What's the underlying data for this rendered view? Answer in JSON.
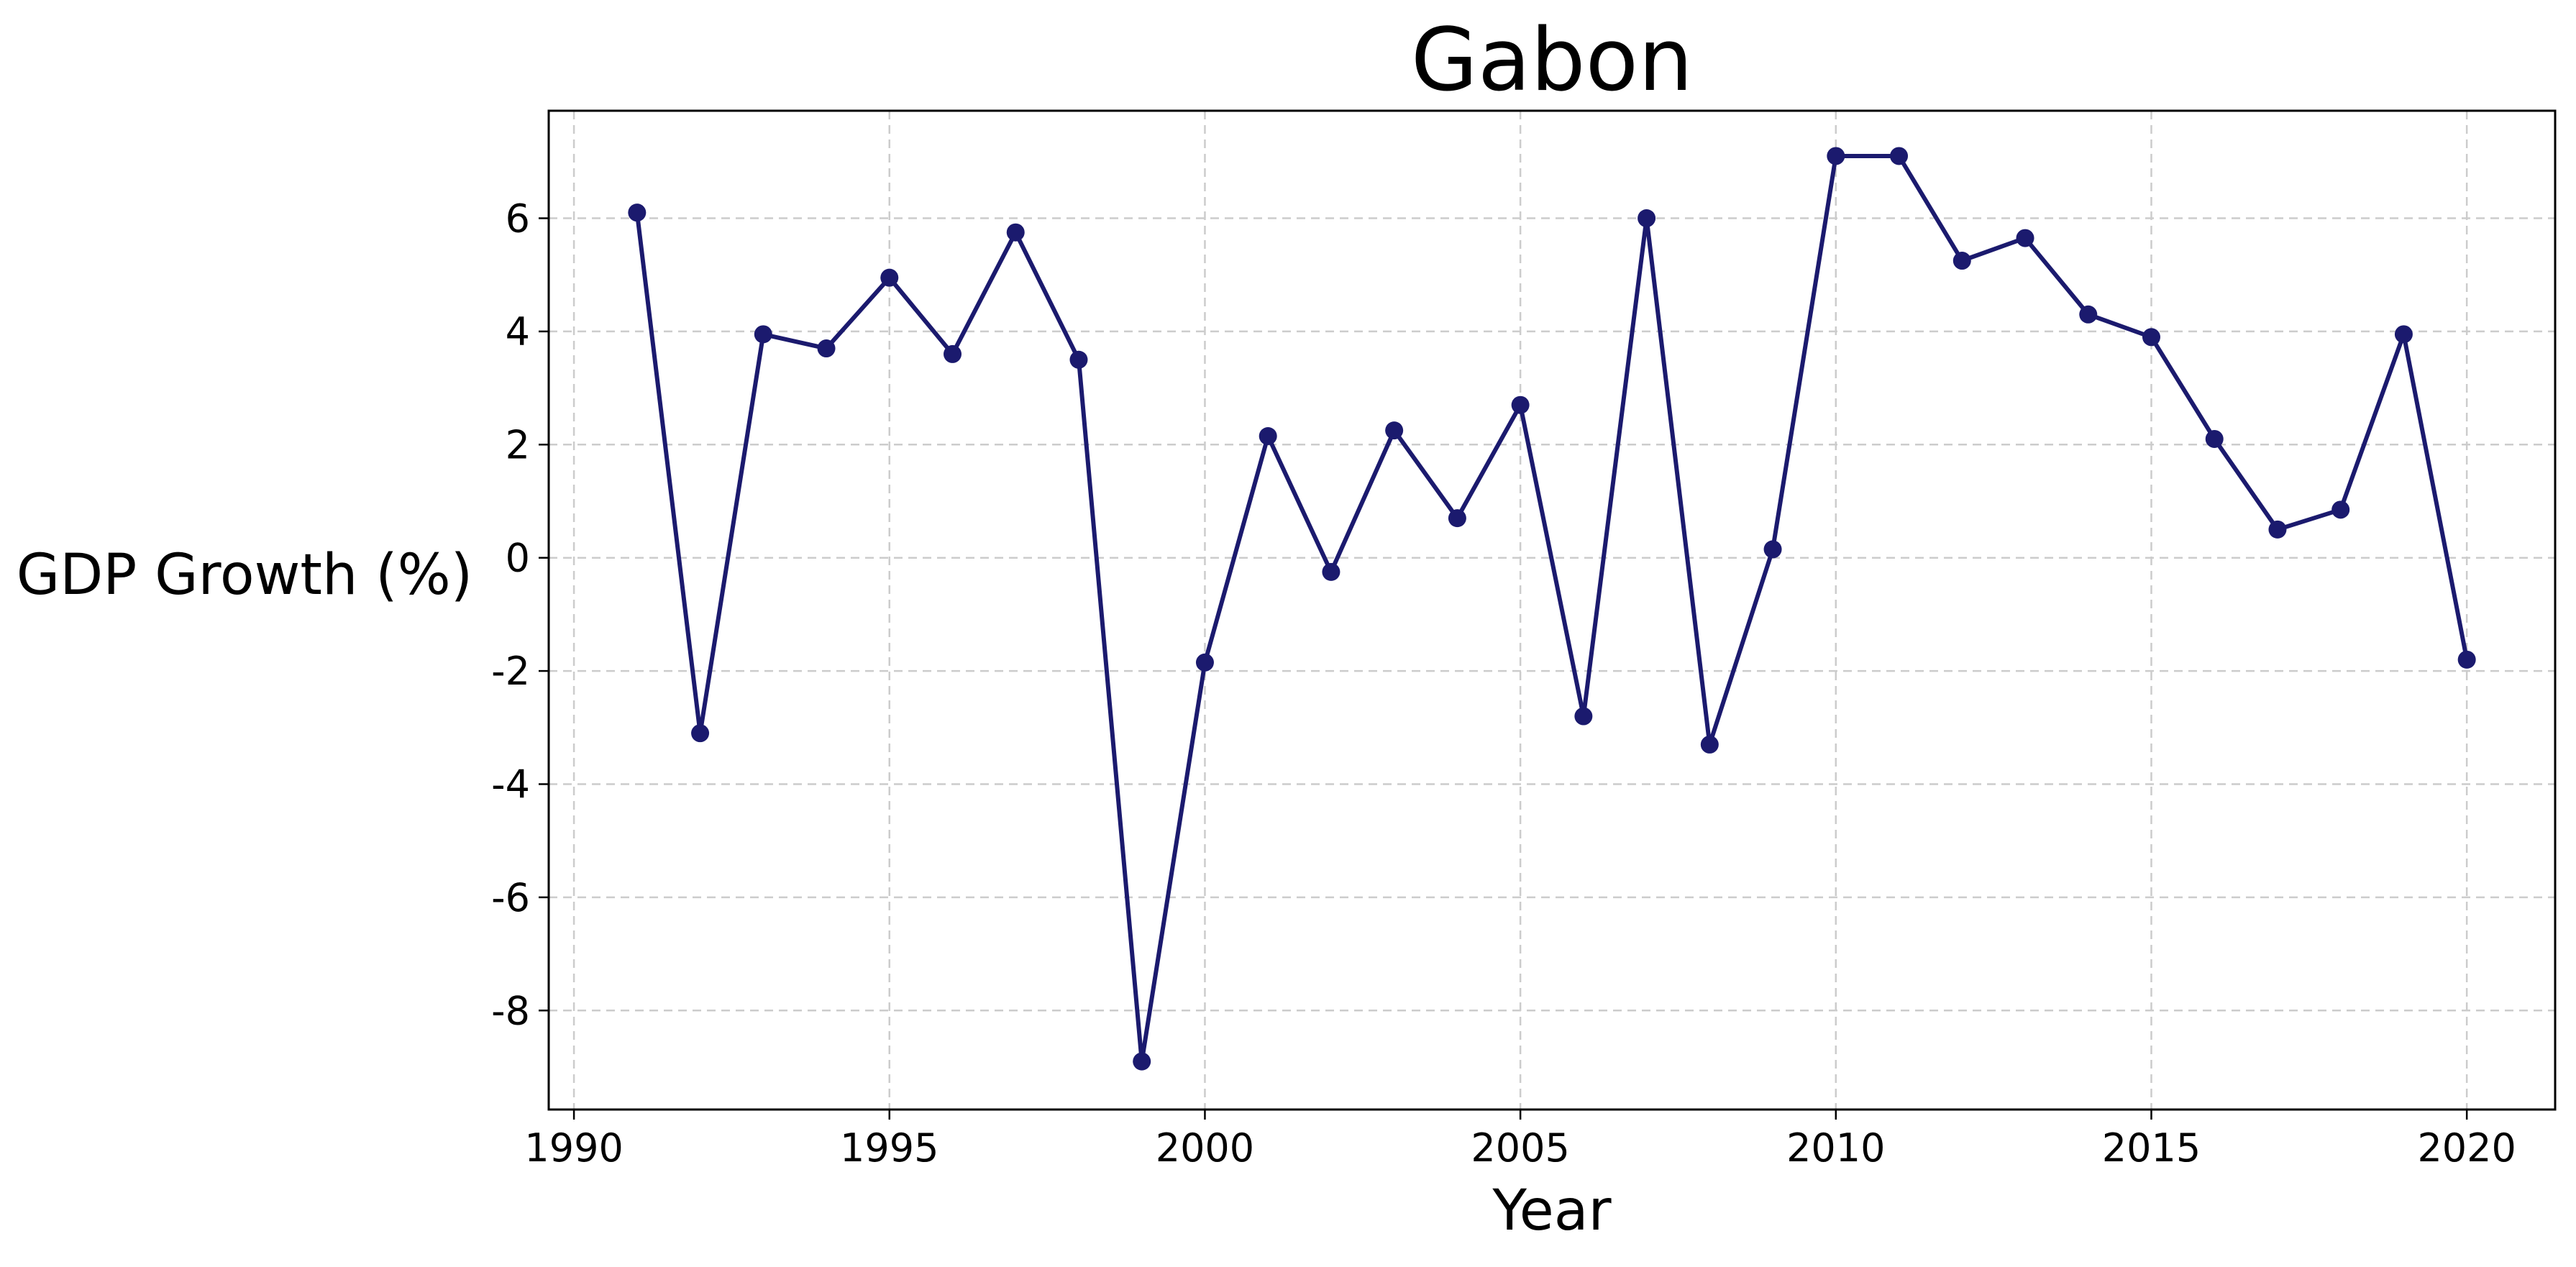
{
  "chart_data": {
    "type": "line",
    "title": "Gabon",
    "xlabel": "Year",
    "ylabel": "GDP Growth (%)",
    "xlim": [
      1989.6,
      2021.4
    ],
    "ylim": [
      -9.75,
      7.9
    ],
    "xticks": [
      1990,
      1995,
      2000,
      2005,
      2010,
      2015,
      2020
    ],
    "yticks": [
      -8,
      -6,
      -4,
      -2,
      0,
      2,
      4,
      6
    ],
    "grid": true,
    "line_color": "#1b1a6e",
    "series": [
      {
        "x": [
          1991,
          1992,
          1993,
          1994,
          1995,
          1996,
          1997,
          1998,
          1999,
          2000,
          2001,
          2002,
          2003,
          2004,
          2005,
          2006,
          2007,
          2008,
          2009,
          2010,
          2011,
          2012,
          2013,
          2014,
          2015,
          2016,
          2017,
          2018,
          2019,
          2020
        ],
        "y": [
          6.1,
          -3.1,
          3.95,
          3.7,
          4.95,
          3.6,
          5.75,
          3.5,
          -8.9,
          -1.85,
          2.15,
          -0.25,
          2.25,
          0.7,
          2.7,
          -2.8,
          6.0,
          -3.3,
          0.15,
          7.1,
          7.1,
          5.25,
          5.65,
          4.3,
          3.9,
          2.1,
          0.5,
          0.85,
          3.95,
          -1.8
        ]
      }
    ]
  }
}
